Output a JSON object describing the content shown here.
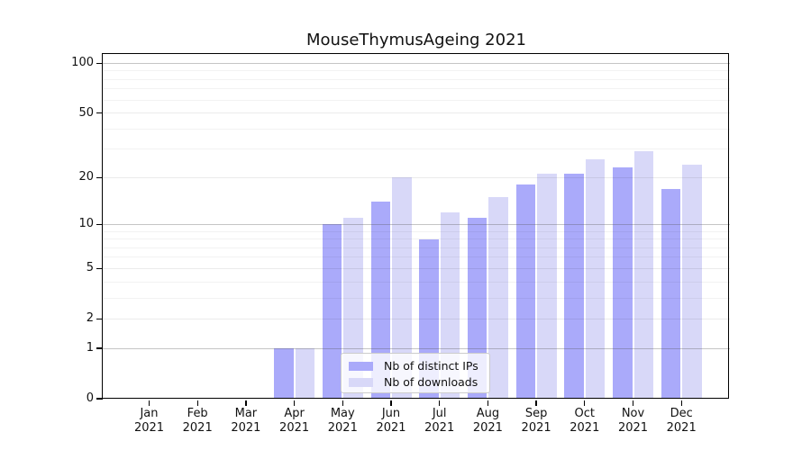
{
  "chart_data": {
    "type": "bar",
    "title": "MouseThymusAgeing 2021",
    "categories": [
      "Jan 2021",
      "Feb 2021",
      "Mar 2021",
      "Apr 2021",
      "May 2021",
      "Jun 2021",
      "Jul 2021",
      "Aug 2021",
      "Sep 2021",
      "Oct 2021",
      "Nov 2021",
      "Dec 2021"
    ],
    "months": [
      "Jan",
      "Feb",
      "Mar",
      "Apr",
      "May",
      "Jun",
      "Jul",
      "Aug",
      "Sep",
      "Oct",
      "Nov",
      "Dec"
    ],
    "year": "2021",
    "series": [
      {
        "name": "Nb of distinct IPs",
        "color": "#aaaafa",
        "values": [
          0,
          0,
          0,
          1,
          10,
          14,
          8,
          11,
          18,
          21,
          23,
          17
        ]
      },
      {
        "name": "Nb of downloads",
        "color": "#d8d8f8",
        "values": [
          0,
          0,
          0,
          1,
          11,
          20,
          12,
          15,
          21,
          26,
          29,
          24
        ]
      }
    ],
    "xlabel": "",
    "ylabel": "",
    "ylim": [
      0,
      114
    ],
    "y_axis": {
      "scale": "log1p",
      "tick_values": [
        0,
        1,
        2,
        5,
        10,
        20,
        50,
        100
      ],
      "decade_gridline_values": [
        1,
        10,
        100
      ],
      "minor_gridline_values": [
        2,
        3,
        4,
        5,
        6,
        7,
        8,
        9,
        20,
        30,
        40,
        50,
        60,
        70,
        80,
        90
      ]
    },
    "grid": true,
    "legend_position": "bottom-center"
  },
  "colors": {
    "bar_distinct_ips": "#aaaafa",
    "bar_downloads": "#d8d8f8",
    "decade_gridline": "rgba(90,90,90,0.35)",
    "minor_gridline": "rgba(0,0,0,0.05)",
    "labeled_gridline": "rgba(0,0,0,0.08)",
    "axis_frame": "#000000",
    "legend_border": "#cccccc"
  }
}
